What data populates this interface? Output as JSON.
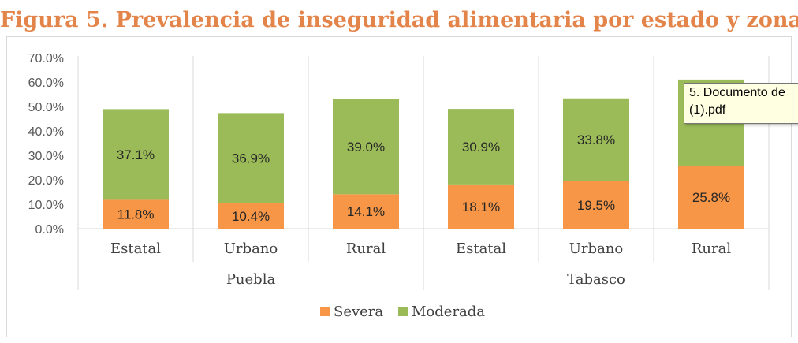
{
  "title": "Figura 5. Prevalencia de inseguridad alimentaria por estado y zona",
  "colors": {
    "severa": "#F79646",
    "moderada": "#9BBB59",
    "title": "#E3844A"
  },
  "tooltip": {
    "line1": "5. Documento de",
    "line2": "(1).pdf"
  },
  "chart_data": {
    "type": "bar",
    "stacked": true,
    "categories": [
      "Estatal",
      "Urbano",
      "Rural",
      "Estatal",
      "Urbano",
      "Rural"
    ],
    "groups": [
      {
        "label": "Puebla",
        "categories": [
          "Estatal",
          "Urbano",
          "Rural"
        ]
      },
      {
        "label": "Tabasco",
        "categories": [
          "Estatal",
          "Urbano",
          "Rural"
        ]
      }
    ],
    "series": [
      {
        "name": "Severa",
        "values": [
          11.8,
          10.4,
          14.1,
          18.1,
          19.5,
          25.8
        ],
        "labels": [
          "11.8%",
          "10.4%",
          "14.1%",
          "18.1%",
          "19.5%",
          "25.8%"
        ]
      },
      {
        "name": "Moderada",
        "values": [
          37.1,
          36.9,
          39.0,
          30.9,
          33.8,
          35.2
        ],
        "labels": [
          "37.1%",
          "36.9%",
          "39.0%",
          "30.9%",
          "33.8%",
          ""
        ]
      }
    ],
    "yticks": [
      "0.0%",
      "10.0%",
      "20.0%",
      "30.0%",
      "40.0%",
      "50.0%",
      "60.0%",
      "70.0%"
    ],
    "ylim": [
      0,
      70
    ],
    "grid": false,
    "legend_position": "bottom"
  }
}
